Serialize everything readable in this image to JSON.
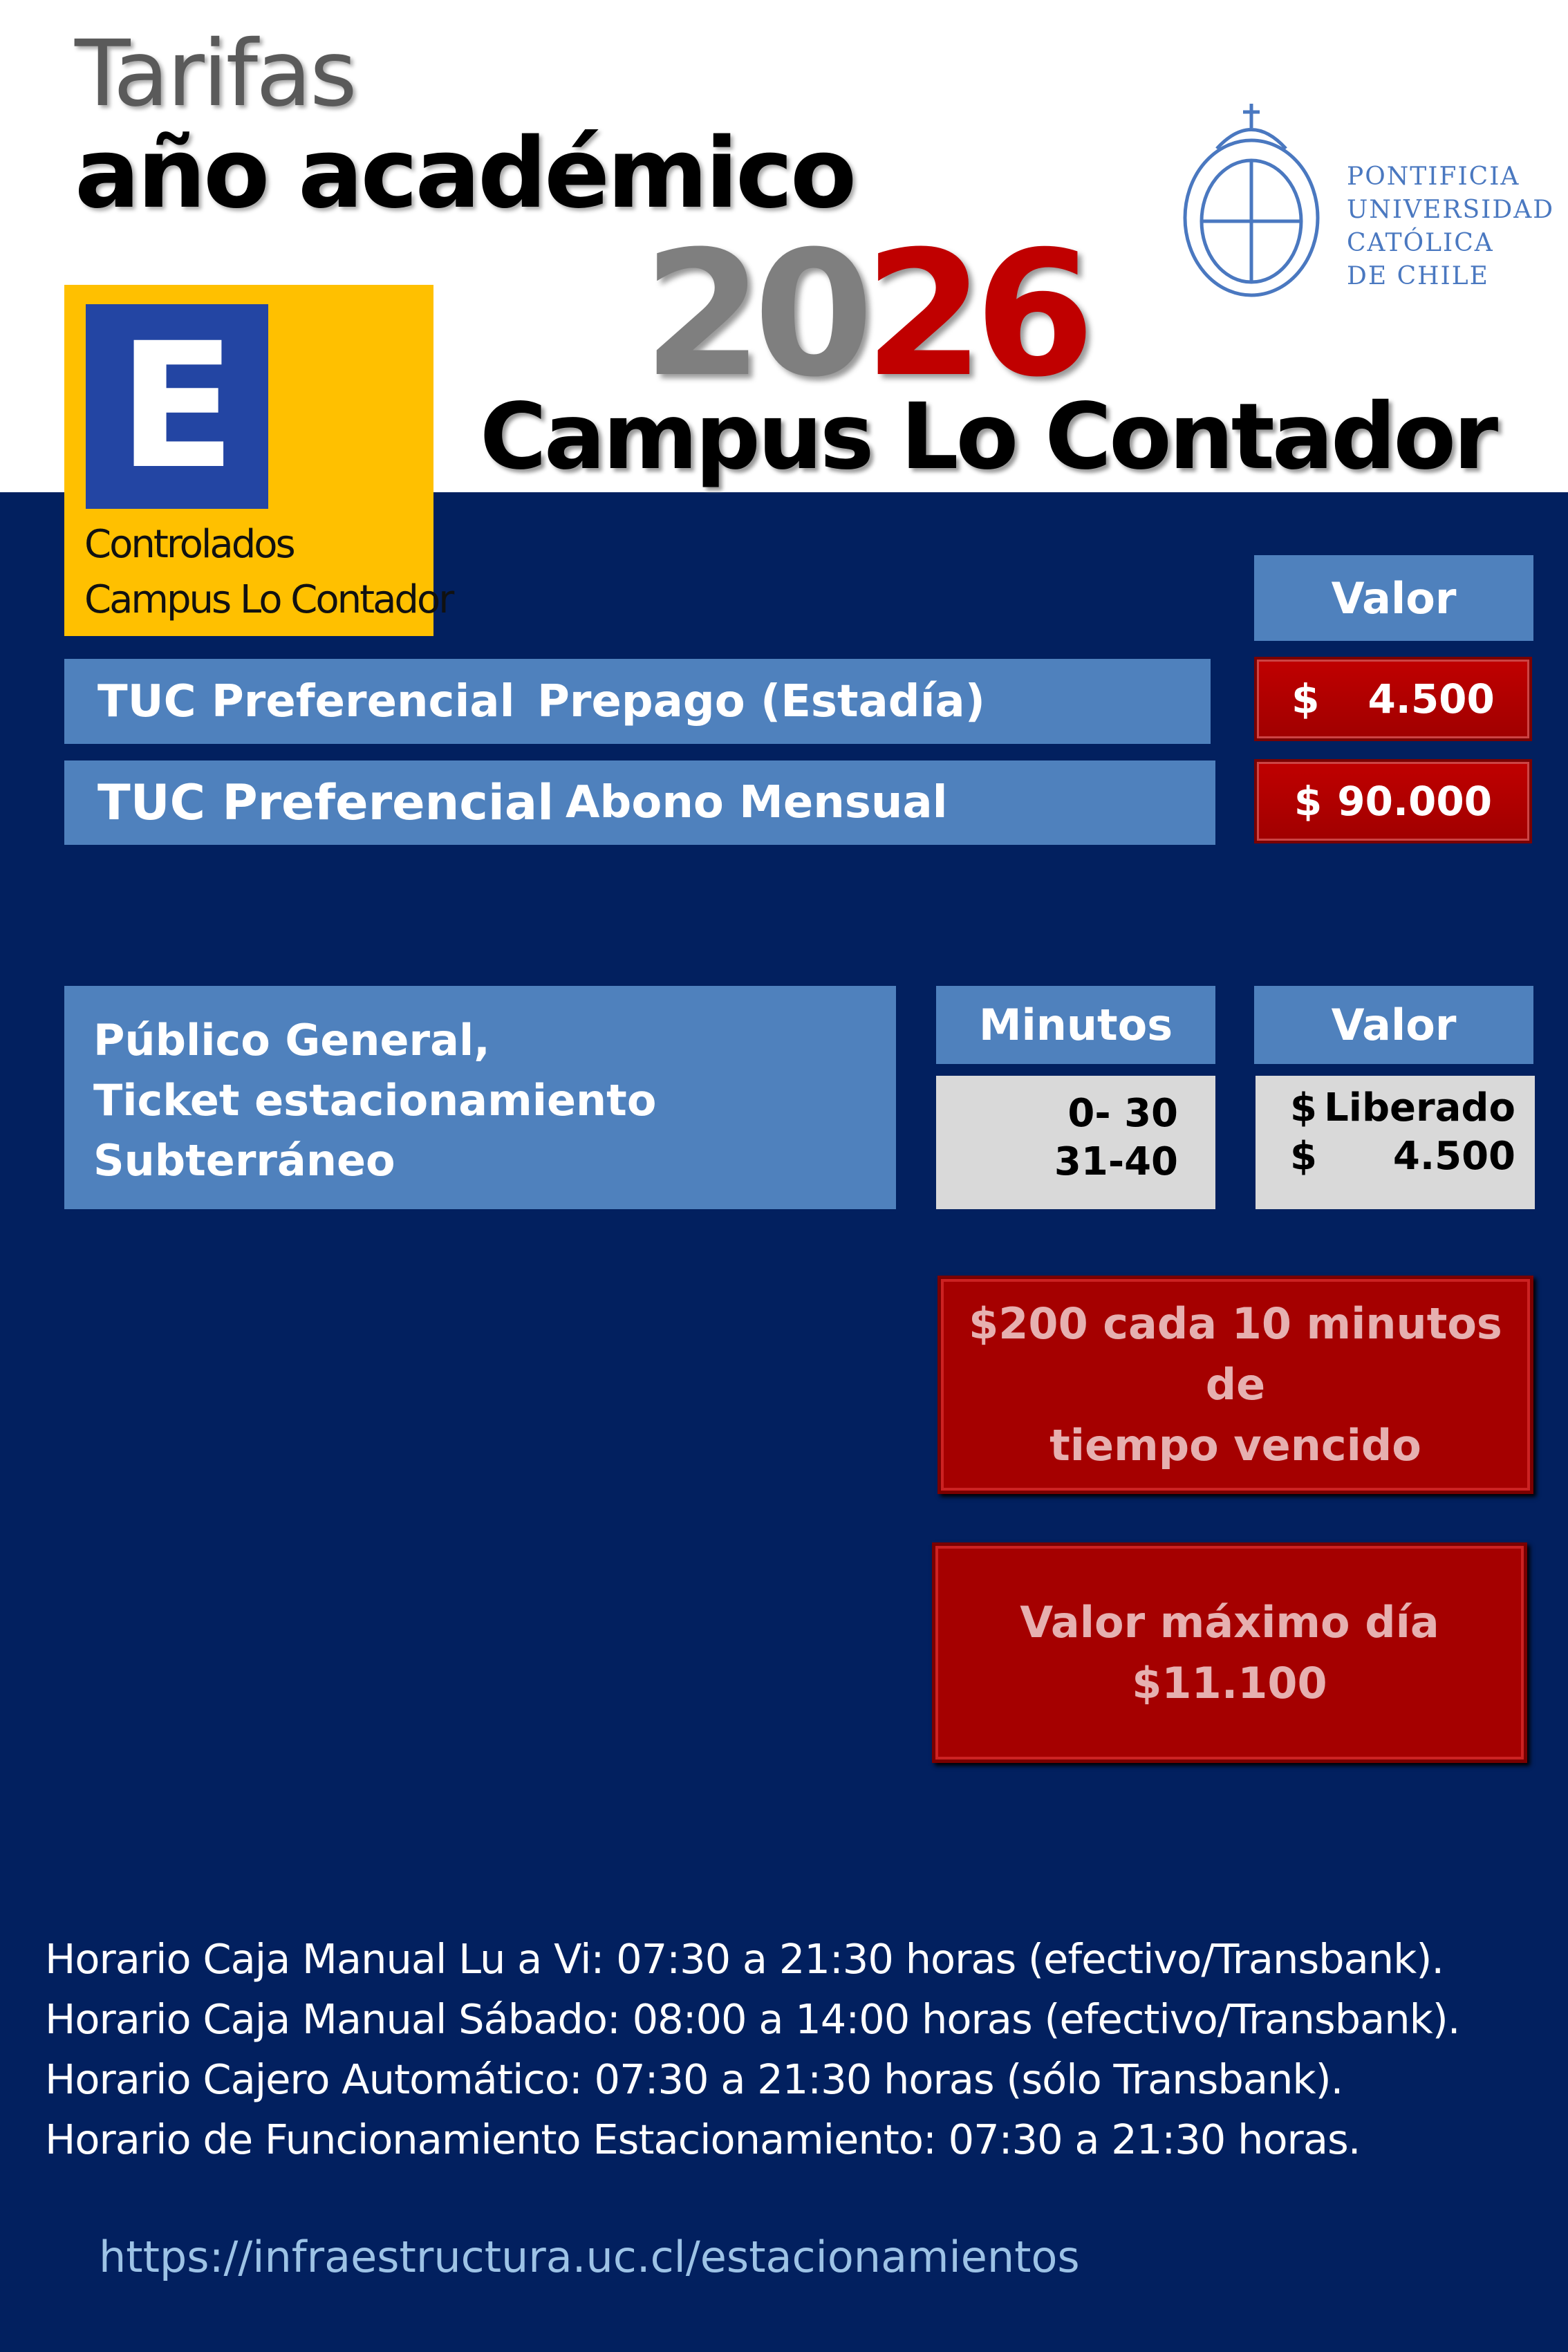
{
  "title": {
    "line1": "Tarifas",
    "line2": "año académico",
    "year_part1": "20",
    "year_part2": "26",
    "campus": "Campus Lo Contador"
  },
  "logo": {
    "lines": [
      "PONTIFICIA",
      "UNIVERSIDAD",
      "CATÓLICA",
      "DE CHILE"
    ],
    "color": "#4a78c0"
  },
  "badge": {
    "letter": "E",
    "line1": "Controlados",
    "line2": "Campus Lo Contador"
  },
  "tuc": {
    "valor_header": "Valor",
    "rows": [
      {
        "type": "TUC  Preferencial",
        "plan": "Prepago  (Estadía)",
        "currency": "$",
        "price": "4.500"
      },
      {
        "type": "TUC  Preferencial",
        "plan": "Abono  Mensual",
        "currency": "$",
        "price": "90.000"
      }
    ]
  },
  "publico": {
    "lines": [
      "Público General,",
      "Ticket estacionamiento",
      "Subterráneo"
    ],
    "minutos_header": "Minutos",
    "valor_header": "Valor",
    "ranges": [
      "0- 30",
      "31-40"
    ],
    "currency": "$",
    "values": [
      "Liberado",
      "4.500"
    ]
  },
  "notes": {
    "overtime": [
      "$200 cada 10 minutos de",
      "tiempo vencido"
    ],
    "max": [
      "Valor máximo día",
      "$11.100"
    ]
  },
  "hours": [
    "Horario Caja Manual Lu a Vi:  07:30 a 21:30 horas (efectivo/Transbank).",
    "Horario Caja Manual Sábado:  08:00 a 14:00 horas (efectivo/Transbank).",
    "Horario Cajero Automático:  07:30 a 21:30 horas (sólo Transbank).",
    "Horario de Funcionamiento Estacionamiento: 07:30 a 21:30 horas."
  ],
  "url": "https://infraestructura.uc.cl/estacionamientos",
  "colors": {
    "navy": "#02205f",
    "accent_blue": "#4f81bd",
    "red": "#c00000",
    "yellow": "#ffc000"
  }
}
